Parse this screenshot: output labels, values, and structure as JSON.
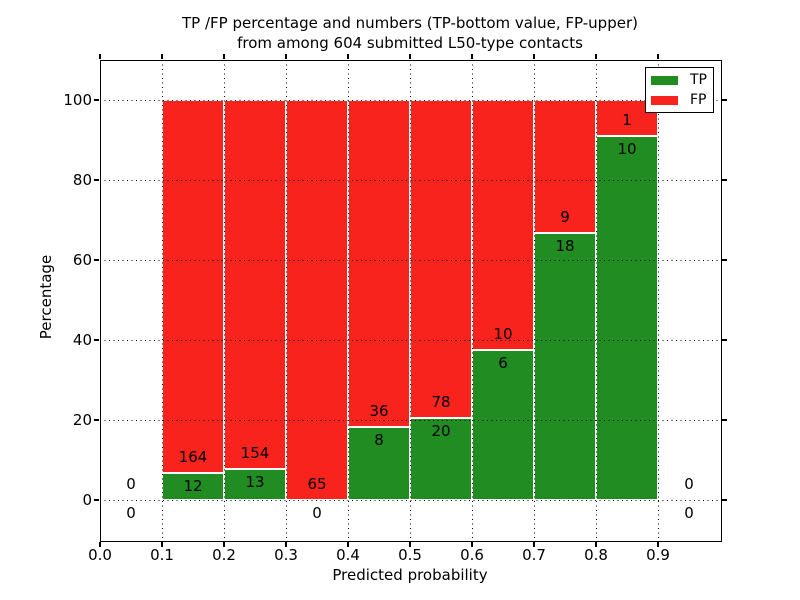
{
  "chart_data": {
    "type": "bar",
    "stacked_percentage": true,
    "title_line1": "TP /FP percentage and numbers (TP-bottom value, FP-upper)",
    "title_line2": "from among 604 submitted L50-type contacts",
    "xlabel": "Predicted probability",
    "ylabel": "Percentage",
    "xlim": [
      0.0,
      1.0
    ],
    "ylim": [
      -10,
      110
    ],
    "grid": true,
    "bin_width": 0.1,
    "x_tick_labels": [
      "0.0",
      "0.1",
      "0.2",
      "0.3",
      "0.4",
      "0.5",
      "0.6",
      "0.7",
      "0.8",
      "0.9"
    ],
    "y_tick_values": [
      0,
      20,
      40,
      60,
      80,
      100
    ],
    "series": [
      {
        "name": "TP",
        "color": "#218c21"
      },
      {
        "name": "FP",
        "color": "#f8231c"
      }
    ],
    "bins": [
      {
        "range": [
          0.0,
          0.1
        ],
        "tp_count": 0,
        "fp_count": 0,
        "tp_pct": 0.0,
        "fp_pct": 0.0
      },
      {
        "range": [
          0.1,
          0.2
        ],
        "tp_count": 12,
        "fp_count": 164,
        "tp_pct": 6.8,
        "fp_pct": 93.2
      },
      {
        "range": [
          0.2,
          0.3
        ],
        "tp_count": 13,
        "fp_count": 154,
        "tp_pct": 7.8,
        "fp_pct": 92.2
      },
      {
        "range": [
          0.3,
          0.4
        ],
        "tp_count": 0,
        "fp_count": 65,
        "tp_pct": 0.0,
        "fp_pct": 100.0
      },
      {
        "range": [
          0.4,
          0.5
        ],
        "tp_count": 8,
        "fp_count": 36,
        "tp_pct": 18.2,
        "fp_pct": 81.8
      },
      {
        "range": [
          0.5,
          0.6
        ],
        "tp_count": 20,
        "fp_count": 78,
        "tp_pct": 20.4,
        "fp_pct": 79.6
      },
      {
        "range": [
          0.6,
          0.7
        ],
        "tp_count": 6,
        "fp_count": 10,
        "tp_pct": 37.5,
        "fp_pct": 62.5
      },
      {
        "range": [
          0.7,
          0.8
        ],
        "tp_count": 18,
        "fp_count": 9,
        "tp_pct": 66.7,
        "fp_pct": 33.3
      },
      {
        "range": [
          0.8,
          0.9
        ],
        "tp_count": 10,
        "fp_count": 1,
        "tp_pct": 90.9,
        "fp_pct": 9.1
      },
      {
        "range": [
          0.9,
          1.0
        ],
        "tp_count": 0,
        "fp_count": 0,
        "tp_pct": 0.0,
        "fp_pct": 0.0
      }
    ],
    "legend_position": "upper right",
    "grid_style": "dotted-black"
  }
}
